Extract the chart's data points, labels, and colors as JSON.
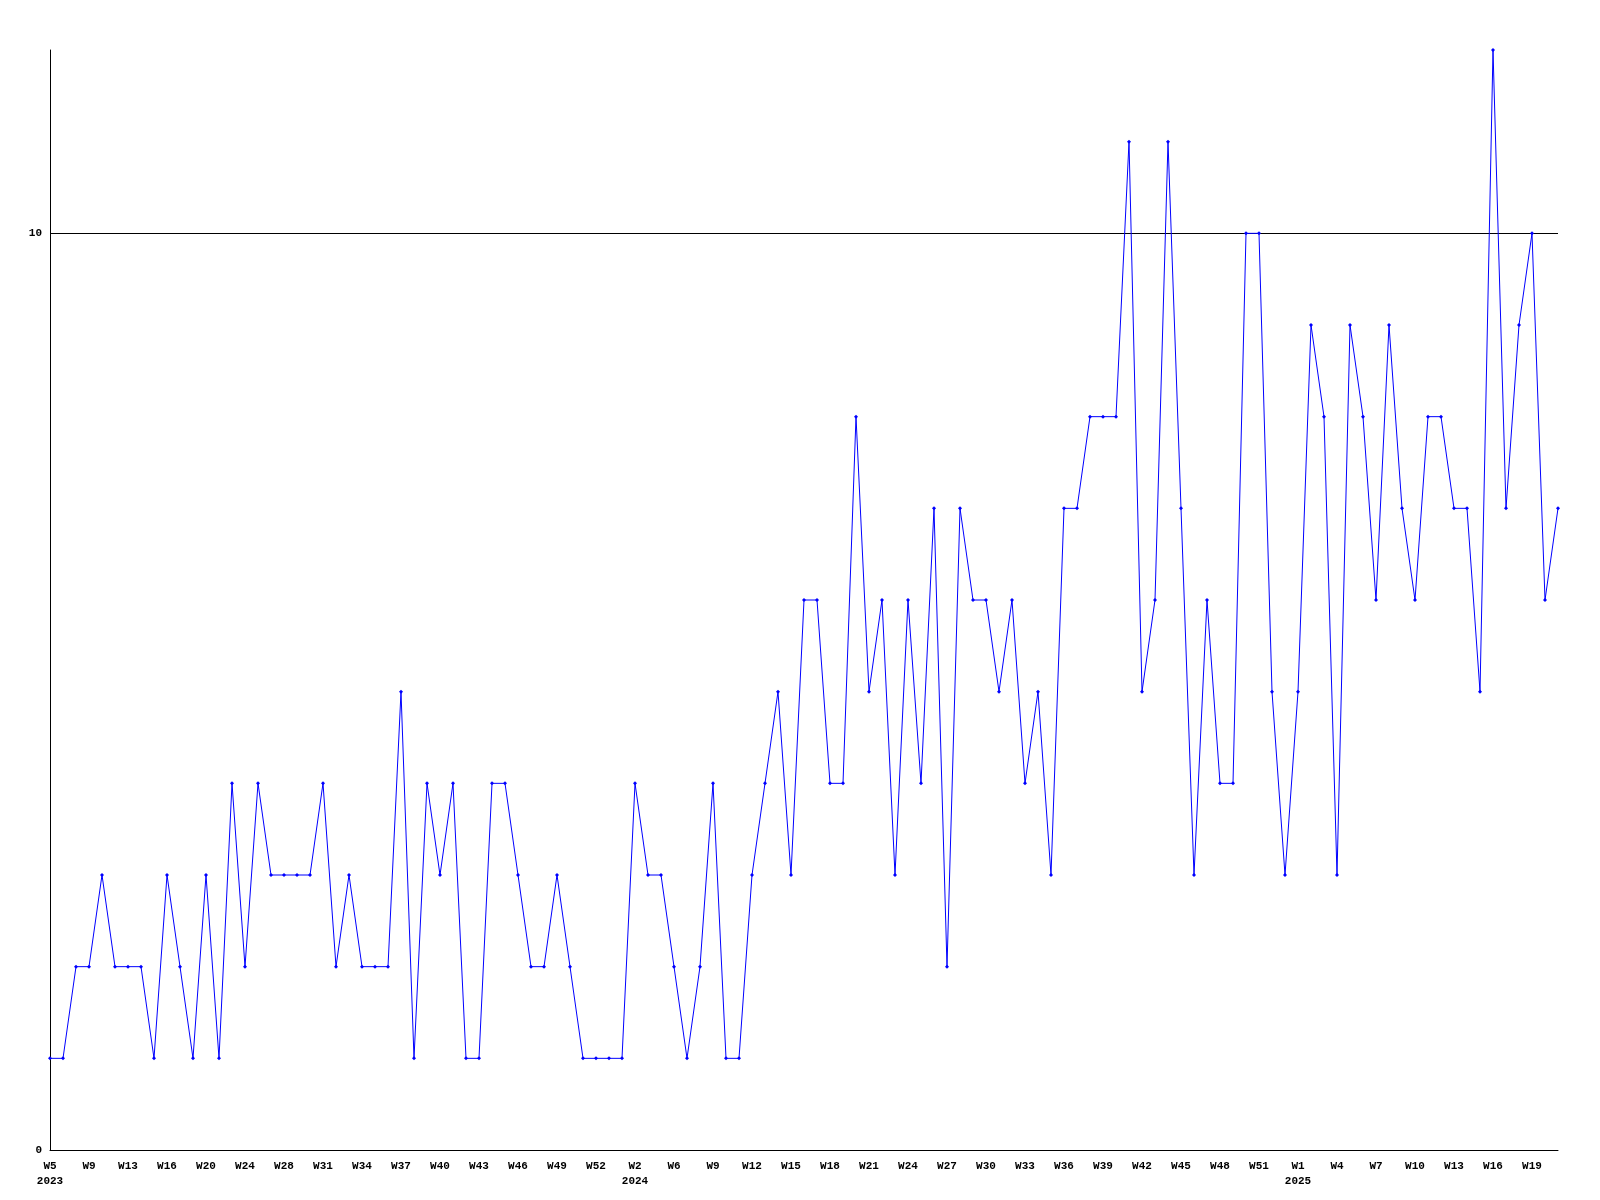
{
  "chart_data": {
    "type": "line",
    "categories": [
      "W5\n2023",
      null,
      null,
      "W9",
      null,
      null,
      "W13",
      null,
      null,
      "W16",
      null,
      null,
      "W20",
      null,
      null,
      "W24",
      null,
      null,
      "W28",
      null,
      null,
      "W31",
      null,
      null,
      "W34",
      null,
      null,
      "W37",
      null,
      null,
      "W40",
      null,
      null,
      "W43",
      null,
      null,
      "W46",
      null,
      null,
      "W49",
      null,
      null,
      "W52",
      null,
      null,
      "W2\n2024",
      null,
      null,
      "W6",
      null,
      null,
      "W9",
      null,
      null,
      "W12",
      null,
      null,
      "W15",
      null,
      null,
      "W18",
      null,
      null,
      "W21",
      null,
      null,
      "W24",
      null,
      null,
      "W27",
      null,
      null,
      "W30",
      null,
      null,
      "W33",
      null,
      null,
      "W36",
      null,
      null,
      "W39",
      null,
      null,
      "W42",
      null,
      null,
      "W45",
      null,
      null,
      "W48",
      null,
      null,
      "W51",
      null,
      null,
      "W1\n2025",
      null,
      null,
      "W4",
      null,
      null,
      "W7",
      null,
      null,
      "W10",
      null,
      null,
      "W13",
      null,
      null,
      "W16",
      null,
      null,
      "W19",
      null,
      null
    ],
    "series": [
      {
        "color": "#0000ff",
        "values": [
          1,
          1,
          2,
          2,
          3,
          2,
          2,
          2,
          1,
          3,
          2,
          1,
          3,
          1,
          4,
          2,
          4,
          3,
          3,
          3,
          3,
          4,
          2,
          3,
          2,
          2,
          2,
          5,
          1,
          4,
          3,
          4,
          1,
          1,
          4,
          4,
          3,
          2,
          2,
          3,
          2,
          1,
          1,
          1,
          1,
          4,
          3,
          3,
          2,
          1,
          2,
          4,
          1,
          1,
          3,
          4,
          5,
          3,
          6,
          6,
          4,
          4,
          8,
          5,
          6,
          3,
          6,
          4,
          7,
          2,
          7,
          6,
          6,
          5,
          6,
          4,
          5,
          3,
          7,
          7,
          8,
          8,
          8,
          11,
          5,
          6,
          11,
          7,
          3,
          6,
          4,
          4,
          10,
          10,
          5,
          3,
          5,
          9,
          8,
          3,
          9,
          8,
          6,
          9,
          7,
          6,
          8,
          8,
          7,
          7,
          5,
          12,
          7,
          9,
          10,
          6,
          7
        ]
      }
    ],
    "ylim": [
      0,
      12
    ],
    "yticks": [
      0,
      10
    ],
    "grid": "y",
    "marker": "diamond"
  }
}
